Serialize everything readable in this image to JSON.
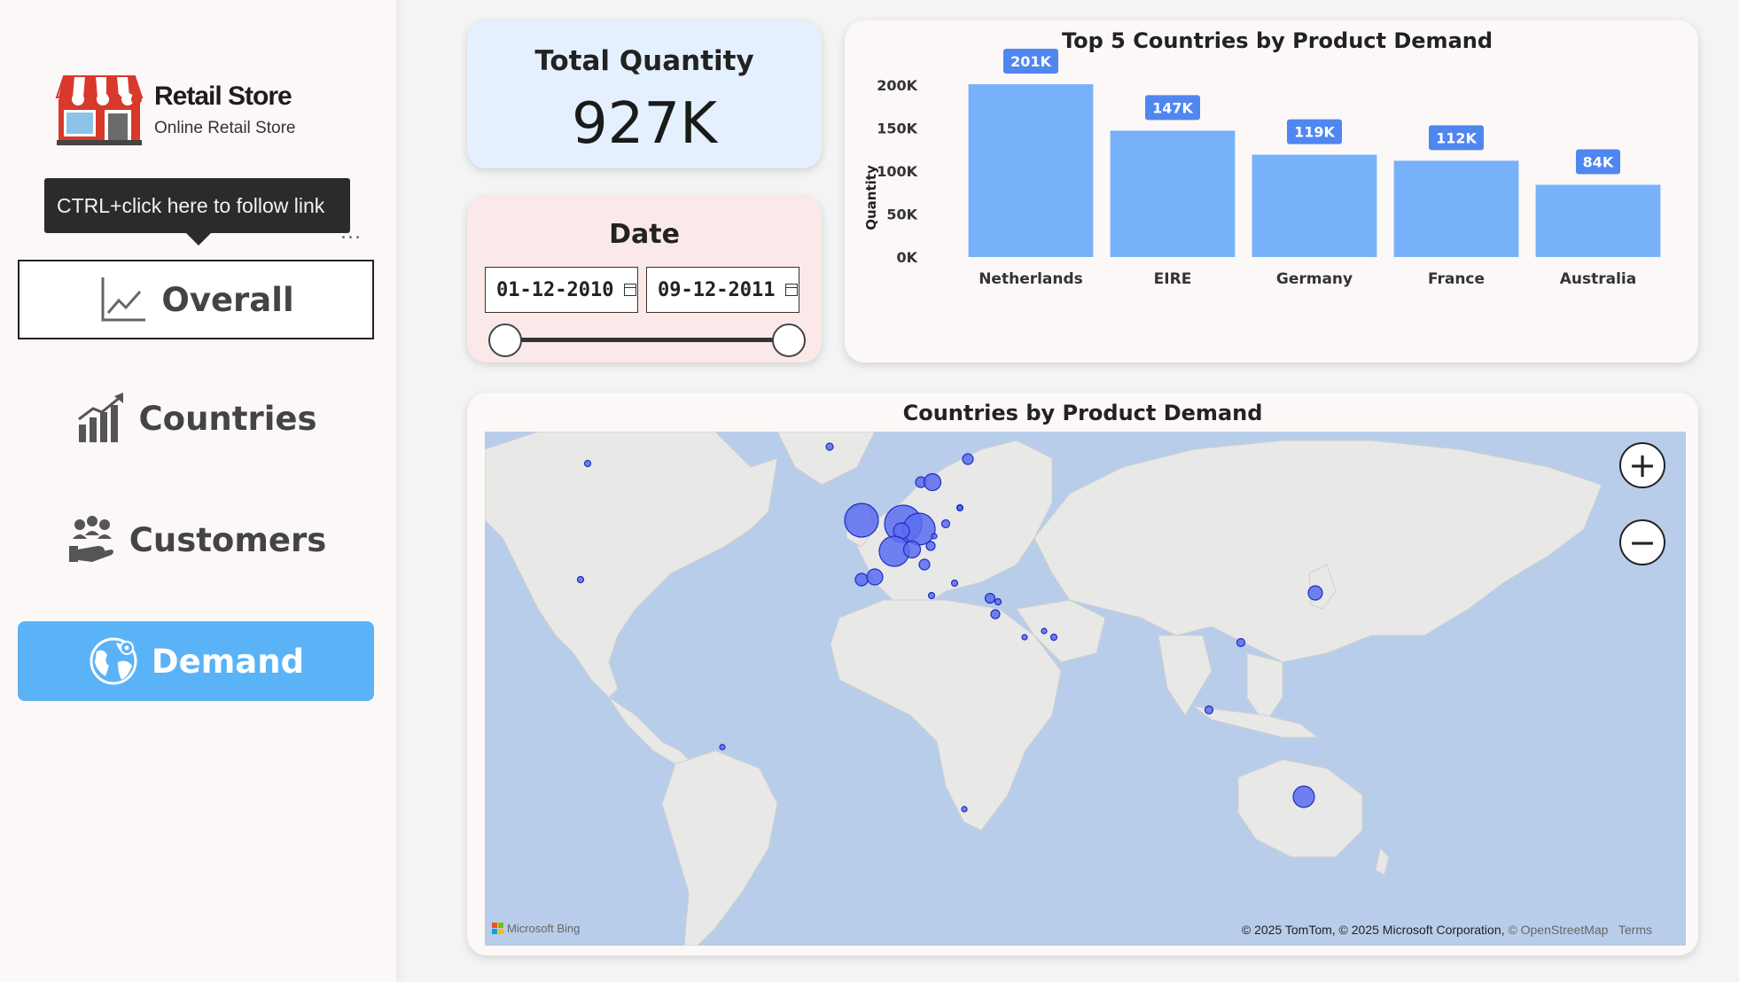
{
  "sidebar": {
    "logo_title": "Retail Store",
    "logo_subtitle": "Online Retail Store",
    "tooltip": "CTRL+click here to follow link",
    "more": "...",
    "nav": [
      {
        "label": "Overall",
        "icon": "line-chart-icon"
      },
      {
        "label": "Countries",
        "icon": "bar-growth-icon"
      },
      {
        "label": "Customers",
        "icon": "people-hand-icon"
      },
      {
        "label": "Demand",
        "icon": "globe-pin-icon"
      }
    ],
    "active": "Demand"
  },
  "kpi": {
    "label": "Total Quantity",
    "value": "927K"
  },
  "date_filter": {
    "label": "Date",
    "start": "01-12-2010",
    "end": "09-12-2011",
    "range_fraction": [
      0,
      1
    ]
  },
  "chart_data": {
    "type": "bar",
    "title": "Top 5 Countries by Product Demand",
    "ylabel": "Quantity",
    "xlabel": "",
    "categories": [
      "Netherlands",
      "EIRE",
      "Germany",
      "France",
      "Australia"
    ],
    "values": [
      201000,
      147000,
      119000,
      112000,
      84000
    ],
    "data_labels": [
      "201K",
      "147K",
      "119K",
      "112K",
      "84K"
    ],
    "yticks": [
      0,
      50000,
      100000,
      150000,
      200000
    ],
    "ytick_labels": [
      "0K",
      "50K",
      "100K",
      "150K",
      "200K"
    ],
    "ylim": [
      0,
      200000
    ],
    "grid": false,
    "colors": {
      "bar": "#77b1f9",
      "label_bg": "#4f86f0",
      "label_text": "#ffffff"
    }
  },
  "map": {
    "title": "Countries by Product Demand",
    "zoom_in": "+",
    "zoom_out": "−",
    "provider": "Microsoft Bing",
    "credits": "© 2025 TomTom, © 2025 Microsoft Corporation,",
    "credit_link": "© OpenStreetMap",
    "terms": "Terms",
    "bubble_color": "#5a6cf0"
  }
}
